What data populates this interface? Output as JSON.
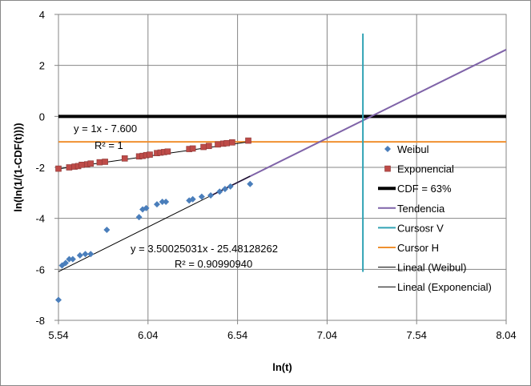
{
  "chart_data": {
    "type": "scatter",
    "xlabel": "ln(t)",
    "ylabel": "ln(ln(1/(1-CDF(t))))",
    "xlim": [
      5.54,
      8.04
    ],
    "ylim": [
      -8,
      4
    ],
    "x_ticks": [
      "5.54",
      "6.04",
      "6.54",
      "7.04",
      "7.54",
      "8.04"
    ],
    "y_ticks": [
      "4",
      "2",
      "0",
      "-2",
      "-4",
      "-6",
      "-8"
    ],
    "grid": "vertical-and-horizontal",
    "legend_position": "right",
    "series": [
      {
        "name": "Weibul",
        "kind": "scatter",
        "marker": "diamond",
        "color": "#4a7ebb",
        "x": [
          5.54,
          5.56,
          5.58,
          5.6,
          5.62,
          5.66,
          5.69,
          5.72,
          5.81,
          5.99,
          6.01,
          6.03,
          6.09,
          6.12,
          6.14,
          6.27,
          6.29,
          6.34,
          6.39,
          6.44,
          6.47,
          6.5,
          6.61
        ],
        "y": [
          -7.2,
          -5.85,
          -5.75,
          -5.6,
          -5.6,
          -5.45,
          -5.4,
          -5.4,
          -4.45,
          -3.95,
          -3.65,
          -3.6,
          -3.45,
          -3.35,
          -3.35,
          -3.3,
          -3.25,
          -3.15,
          -3.1,
          -2.95,
          -2.85,
          -2.75,
          -2.65
        ]
      },
      {
        "name": "Exponencial",
        "kind": "scatter",
        "marker": "square",
        "color": "#be4b48",
        "x": [
          5.54,
          5.6,
          5.63,
          5.65,
          5.67,
          5.7,
          5.72,
          5.77,
          5.8,
          5.91,
          5.99,
          6.01,
          6.03,
          6.05,
          6.09,
          6.11,
          6.13,
          6.15,
          6.27,
          6.29,
          6.35,
          6.38,
          6.43,
          6.46,
          6.48,
          6.51,
          6.6
        ],
        "y": [
          -2.05,
          -2.0,
          -1.97,
          -1.95,
          -1.9,
          -1.88,
          -1.85,
          -1.8,
          -1.78,
          -1.65,
          -1.57,
          -1.55,
          -1.52,
          -1.5,
          -1.44,
          -1.42,
          -1.4,
          -1.38,
          -1.28,
          -1.26,
          -1.2,
          -1.16,
          -1.1,
          -1.07,
          -1.05,
          -1.02,
          -0.95
        ]
      },
      {
        "name": "CDF = 63%",
        "kind": "line",
        "color": "#000000",
        "x": [
          5.54,
          8.04
        ],
        "y": [
          0,
          0
        ]
      },
      {
        "name": "Tendencia",
        "kind": "line",
        "color": "#7f63a8",
        "x": [
          6.4,
          8.04
        ],
        "y": [
          -3.08,
          2.62
        ]
      },
      {
        "name": "Cursosr V",
        "kind": "line",
        "color": "#31a3b5",
        "x": [
          7.24,
          7.24
        ],
        "y": [
          3.25,
          -6.1
        ]
      },
      {
        "name": "Cursor H",
        "kind": "line",
        "color": "#f09030",
        "x": [
          5.54,
          8.04
        ],
        "y": [
          -1.0,
          -1.0
        ]
      },
      {
        "name": "Lineal (Weibul)",
        "kind": "trendline",
        "color": "#000000",
        "slope": 3.50025031,
        "intercept": -25.48128262,
        "x": [
          5.54,
          6.61
        ]
      },
      {
        "name": "Lineal (Exponencial)",
        "kind": "trendline",
        "color": "#000000",
        "slope": 1.0,
        "intercept": -7.6,
        "x": [
          5.54,
          6.61
        ]
      }
    ],
    "annotations": [
      {
        "id": "exp_eq",
        "text": "y = 1x - 7.600"
      },
      {
        "id": "exp_r2",
        "text": "R² = 1"
      },
      {
        "id": "weib_eq",
        "text": "y = 3.50025031x - 25.48128262"
      },
      {
        "id": "weib_r2",
        "text": "R² = 0.90990940"
      }
    ]
  }
}
